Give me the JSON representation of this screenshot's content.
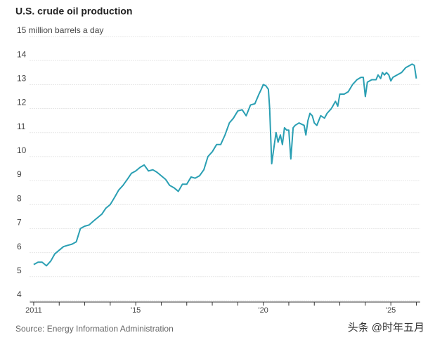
{
  "chart_data": {
    "type": "line",
    "title": "U.S. crude oil production",
    "source": "Source: Energy Information Administration",
    "watermark": "头条 @时年五月",
    "xlim": [
      2010.85,
      2026.15
    ],
    "ylim": [
      3.94,
      15
    ],
    "yticks": [
      4,
      5,
      6,
      7,
      8,
      9,
      10,
      11,
      12,
      13,
      14,
      {
        "value": 15,
        "label": "15 million barrels a day"
      }
    ],
    "xticks": [
      {
        "value": 2011,
        "label": "2011"
      },
      {
        "value": 2012,
        "label": null
      },
      {
        "value": 2013,
        "label": null
      },
      {
        "value": 2014,
        "label": null
      },
      {
        "value": 2015,
        "label": "'15"
      },
      {
        "value": 2016,
        "label": null
      },
      {
        "value": 2017,
        "label": null
      },
      {
        "value": 2018,
        "label": null
      },
      {
        "value": 2019,
        "label": null
      },
      {
        "value": 2020,
        "label": "'20"
      },
      {
        "value": 2021,
        "label": null
      },
      {
        "value": 2022,
        "label": null
      },
      {
        "value": 2023,
        "label": null
      },
      {
        "value": 2024,
        "label": null
      },
      {
        "value": 2025,
        "label": "'25"
      },
      {
        "value": 2026,
        "label": null
      }
    ],
    "grid": true,
    "series": [
      {
        "color": "#2a9fb3",
        "x": [
          2011.0,
          2011.17,
          2011.33,
          2011.5,
          2011.67,
          2011.83,
          2012.0,
          2012.17,
          2012.33,
          2012.5,
          2012.67,
          2012.83,
          2013.0,
          2013.17,
          2013.33,
          2013.5,
          2013.67,
          2013.83,
          2014.0,
          2014.17,
          2014.33,
          2014.5,
          2014.67,
          2014.83,
          2015.0,
          2015.17,
          2015.33,
          2015.5,
          2015.67,
          2015.83,
          2016.0,
          2016.17,
          2016.33,
          2016.5,
          2016.67,
          2016.83,
          2017.0,
          2017.17,
          2017.33,
          2017.5,
          2017.67,
          2017.83,
          2018.0,
          2018.17,
          2018.33,
          2018.5,
          2018.67,
          2018.83,
          2019.0,
          2019.17,
          2019.33,
          2019.5,
          2019.67,
          2019.83,
          2019.92,
          2020.0,
          2020.1,
          2020.2,
          2020.25,
          2020.33,
          2020.42,
          2020.5,
          2020.58,
          2020.67,
          2020.75,
          2020.83,
          2020.92,
          2021.0,
          2021.08,
          2021.17,
          2021.25,
          2021.4,
          2021.6,
          2021.67,
          2021.75,
          2021.83,
          2021.92,
          2022.0,
          2022.1,
          2022.25,
          2022.4,
          2022.5,
          2022.67,
          2022.83,
          2022.92,
          2023.0,
          2023.17,
          2023.33,
          2023.5,
          2023.67,
          2023.83,
          2023.92,
          2024.0,
          2024.08,
          2024.25,
          2024.42,
          2024.5,
          2024.6,
          2024.67,
          2024.75,
          2024.83,
          2024.92,
          2025.0,
          2025.08,
          2025.25,
          2025.42,
          2025.58,
          2025.75,
          2025.83,
          2025.92,
          2026.0
        ],
        "values": [
          5.5,
          5.6,
          5.6,
          5.45,
          5.65,
          5.95,
          6.1,
          6.25,
          6.3,
          6.35,
          6.45,
          7.0,
          7.1,
          7.15,
          7.3,
          7.45,
          7.6,
          7.85,
          8.0,
          8.3,
          8.6,
          8.8,
          9.05,
          9.3,
          9.4,
          9.55,
          9.65,
          9.4,
          9.45,
          9.35,
          9.2,
          9.05,
          8.8,
          8.7,
          8.55,
          8.85,
          8.85,
          9.15,
          9.1,
          9.2,
          9.45,
          10.0,
          10.2,
          10.5,
          10.5,
          10.9,
          11.4,
          11.6,
          11.9,
          11.95,
          11.7,
          12.15,
          12.2,
          12.6,
          12.8,
          13.0,
          12.95,
          12.8,
          12.0,
          9.7,
          10.4,
          11.0,
          10.6,
          10.9,
          10.5,
          11.2,
          11.1,
          11.1,
          9.9,
          11.2,
          11.3,
          11.4,
          11.3,
          10.9,
          11.5,
          11.8,
          11.7,
          11.4,
          11.3,
          11.7,
          11.6,
          11.8,
          12.0,
          12.3,
          12.1,
          12.6,
          12.6,
          12.7,
          13.0,
          13.2,
          13.3,
          13.3,
          12.5,
          13.1,
          13.2,
          13.2,
          13.4,
          13.25,
          13.5,
          13.4,
          13.5,
          13.4,
          13.15,
          13.3,
          13.4,
          13.5,
          13.7,
          13.8,
          13.85,
          13.8,
          13.25
        ]
      }
    ]
  }
}
